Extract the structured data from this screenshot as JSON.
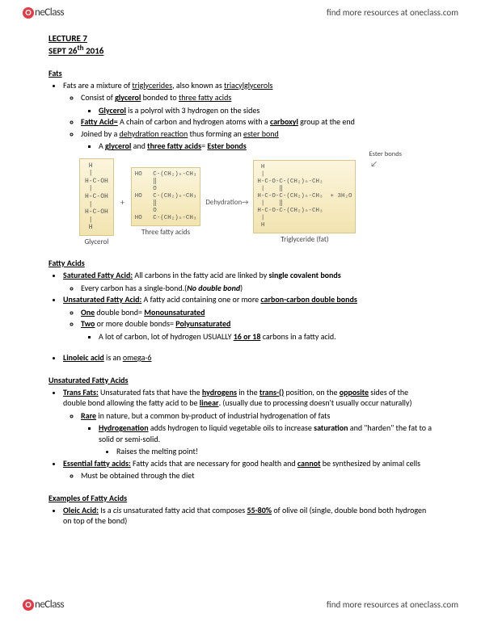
{
  "header": {
    "brand_o": "O",
    "brand_txt": "neClass",
    "tagline": "find more resources at oneclass.com"
  },
  "title": {
    "line1": "LECTURE 7",
    "line2": "SEPT 26",
    "sup": "th",
    "year": " 2016"
  },
  "sections": {
    "fats": {
      "heading": "Fats",
      "l1": "Fats are a mixture of ",
      "l1u1": "triglycerides",
      "l1m": ", also known as ",
      "l1u2": "triacylglycerols",
      "l2a": "Consist of ",
      "l2b": "glycerol",
      "l2c": " bonded to ",
      "l2d": "three fatty acids",
      "l3a": "Glycerol",
      "l3b": " is a polyrol with 3 hydrogen on the sides",
      "l4a": "Fatty Acid=",
      "l4b": " A chain of carbon and hydrogen atoms with a ",
      "l4c": "carboxyl",
      "l4d": " group at the end",
      "l5a": "Joined by a ",
      "l5b": "dehydration reaction",
      "l5c": " thus forming an ",
      "l5d": "ester bond",
      "l6a": "A ",
      "l6b": "glycerol",
      "l6c": " and ",
      "l6d": "three fatty acids",
      "l6e": "= ",
      "l6f": "Ester bonds"
    },
    "diagram": {
      "glycerol": " H\n |\nH-C-OH\n |\nH-C-OH\n |\nH-C-OH\n |\n H",
      "glycerol_cap": "Glycerol",
      "ffa": "HO   C-(CH₂)ₙ-CH₃\n     ‖\n     O\nHO   C-(CH₂)ₙ-CH₃\n     ‖\n     O\nHO   C-(CH₂)ₙ-CH₃",
      "ffa_cap": "Three fatty acids",
      "arrow": "Dehydration→",
      "tri": " H\n |\nH-C-O-C-(CH₂)ₙ-CH₃\n |    ‖\nH-C-O-C-(CH₂)ₙ-CH₃  + 3H₂O\n |    ‖\nH-C-O-C-(CH₂)ₙ-CH₃\n |\n H",
      "tri_cap": "Triglyceride (fat)",
      "plus": "+",
      "ester_label": "Ester bonds",
      "ester_arrow": "↙"
    },
    "fa": {
      "heading": "Fatty Acids",
      "s1a": "Saturated Fatty Acid:",
      "s1b": " All carbons in the fatty acid are linked by ",
      "s1c": "single covalent bonds",
      "s2": "Every carbon has a single-bond.(",
      "s2b": "No double bond",
      "s2c": ")",
      "u1a": "Unsaturated Fatty Acid:",
      "u1b": " A fatty acid containing one or more ",
      "u1c": "carbon-carbon double bonds",
      "u2a": "One",
      "u2b": " double bond= ",
      "u2c": "Monounsaturated",
      "u3a": "Two",
      "u3b": " or more double bonds= ",
      "u3c": "Polyunsaturated",
      "u4a": "A lot of carbon, lot of hydrogen USUALLY ",
      "u4b": "16 or 18",
      "u4c": " carbons in a fatty acid.",
      "lin1": "Linoleic acid",
      "lin2": " is an ",
      "lin3": "omega-6"
    },
    "ufa": {
      "heading": "Unsaturated Fatty Acids",
      "t1a": "Trans Fats:",
      "t1b": " Unsaturated fats that have the ",
      "t1c": "hydrogens",
      "t1d": " in the ",
      "t1e": "trans-()",
      "t1f": " position, on the ",
      "t1g": "opposite",
      "t1h": " sides of the double bond allowing the fatty acid to be ",
      "t1i": "linear",
      "t1j": ". (usually due to processing doesn't usually occur naturally)",
      "t2a": "Rare",
      "t2b": " in nature, but a common by-product of industrial hydrogenation of fats",
      "t3a": "Hydrogenation",
      "t3b": " adds hydrogen to liquid vegetable oils to increase ",
      "t3c": "saturation",
      "t3d": " and \"harden\" the fat to a solid or semi-solid.",
      "t4": "Raises the melting point!",
      "e1a": "Essential fatty acids:",
      "e1b": " Fatty acids that are necessary for good health and ",
      "e1c": "cannot",
      "e1d": " be synthesized by animal cells",
      "e2": "Must be obtained through the diet"
    },
    "ex": {
      "heading": "Examples of Fatty Acids",
      "o1a": "Oleic Acid:",
      "o1b": " Is a ",
      "o1c": "cis",
      "o1d": " unsaturated fatty acid that composes ",
      "o1e": "55-80%",
      "o1f": " of olive oil (single, double bond both hydrogen on top of the bond)"
    }
  }
}
